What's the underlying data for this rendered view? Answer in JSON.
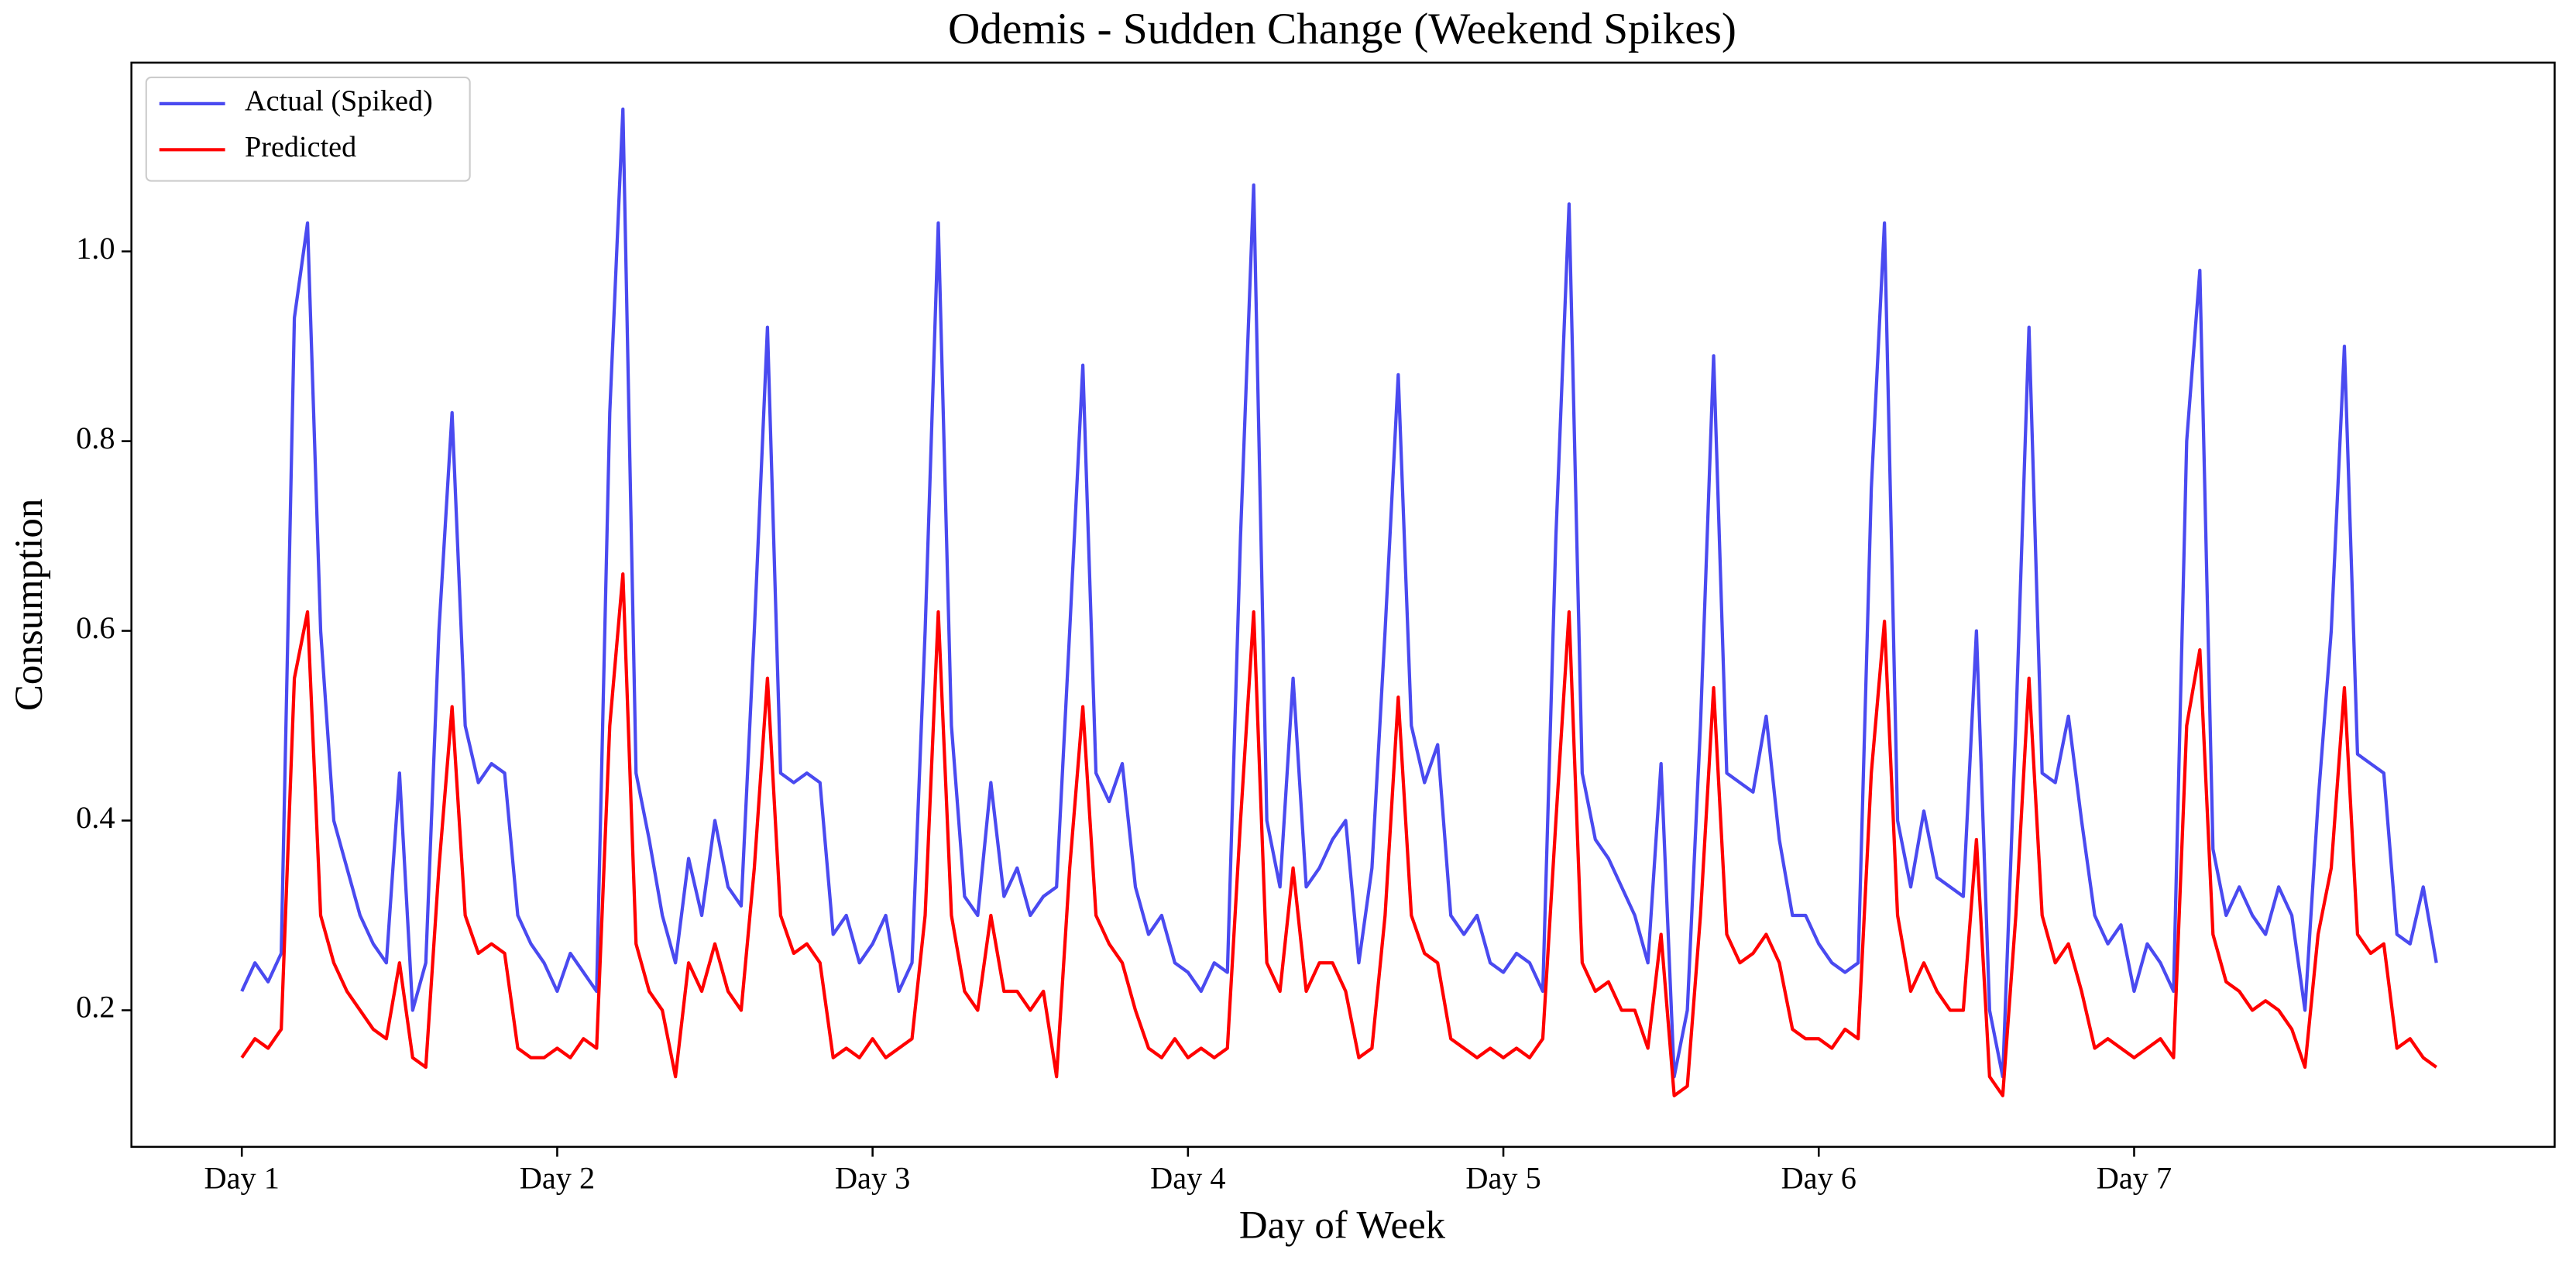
{
  "chart_data": {
    "type": "line",
    "title": "Odemis - Sudden Change (Weekend Spikes)",
    "xlabel": "Day of Week",
    "ylabel": "Consumption",
    "legend": "upper left",
    "grid": false,
    "xlim": [
      -8.4,
      176
    ],
    "ylim": [
      0.056,
      1.199
    ],
    "xticks": [
      {
        "value": 0,
        "label": "Day 1"
      },
      {
        "value": 24,
        "label": "Day 2"
      },
      {
        "value": 48,
        "label": "Day 3"
      },
      {
        "value": 72,
        "label": "Day 4"
      },
      {
        "value": 96,
        "label": "Day 5"
      },
      {
        "value": 120,
        "label": "Day 6"
      },
      {
        "value": 144,
        "label": "Day 7"
      }
    ],
    "yticks": [
      0.2,
      0.4,
      0.6,
      0.8,
      {
        "value": 1,
        "label": "1.0"
      }
    ],
    "x": [
      0,
      1,
      2,
      3,
      4,
      5,
      6,
      7,
      8,
      9,
      10,
      11,
      12,
      13,
      14,
      15,
      16,
      17,
      18,
      19,
      20,
      21,
      22,
      23,
      24,
      25,
      26,
      27,
      28,
      29,
      30,
      31,
      32,
      33,
      34,
      35,
      36,
      37,
      38,
      39,
      40,
      41,
      42,
      43,
      44,
      45,
      46,
      47,
      48,
      49,
      50,
      51,
      52,
      53,
      54,
      55,
      56,
      57,
      58,
      59,
      60,
      61,
      62,
      63,
      64,
      65,
      66,
      67,
      68,
      69,
      70,
      71,
      72,
      73,
      74,
      75,
      76,
      77,
      78,
      79,
      80,
      81,
      82,
      83,
      84,
      85,
      86,
      87,
      88,
      89,
      90,
      91,
      92,
      93,
      94,
      95,
      96,
      97,
      98,
      99,
      100,
      101,
      102,
      103,
      104,
      105,
      106,
      107,
      108,
      109,
      110,
      111,
      112,
      113,
      114,
      115,
      116,
      117,
      118,
      119,
      120,
      121,
      122,
      123,
      124,
      125,
      126,
      127,
      128,
      129,
      130,
      131,
      132,
      133,
      134,
      135,
      136,
      137,
      138,
      139,
      140,
      141,
      142,
      143,
      144,
      145,
      146,
      147,
      148,
      149,
      150,
      151,
      152,
      153,
      154,
      155,
      156,
      157,
      158,
      159,
      160,
      161,
      162,
      163,
      164,
      165,
      166,
      167
    ],
    "series": [
      {
        "name": "Actual (Spiked)",
        "color": "#4a4af0",
        "values": [
          0.22,
          0.25,
          0.23,
          0.26,
          0.93,
          1.03,
          0.6,
          0.4,
          0.35,
          0.3,
          0.27,
          0.25,
          0.45,
          0.2,
          0.25,
          0.6,
          0.83,
          0.5,
          0.44,
          0.46,
          0.45,
          0.3,
          0.27,
          0.25,
          0.22,
          0.26,
          0.24,
          0.22,
          0.83,
          1.15,
          0.45,
          0.38,
          0.3,
          0.25,
          0.36,
          0.3,
          0.4,
          0.33,
          0.31,
          0.6,
          0.92,
          0.45,
          0.44,
          0.45,
          0.44,
          0.28,
          0.3,
          0.25,
          0.27,
          0.3,
          0.22,
          0.25,
          0.6,
          1.03,
          0.5,
          0.32,
          0.3,
          0.44,
          0.32,
          0.35,
          0.3,
          0.32,
          0.33,
          0.6,
          0.88,
          0.45,
          0.42,
          0.46,
          0.33,
          0.28,
          0.3,
          0.25,
          0.24,
          0.22,
          0.25,
          0.24,
          0.7,
          1.07,
          0.4,
          0.33,
          0.55,
          0.33,
          0.35,
          0.38,
          0.4,
          0.25,
          0.35,
          0.6,
          0.87,
          0.5,
          0.44,
          0.48,
          0.3,
          0.28,
          0.3,
          0.25,
          0.24,
          0.26,
          0.25,
          0.22,
          0.7,
          1.05,
          0.45,
          0.38,
          0.36,
          0.33,
          0.3,
          0.25,
          0.46,
          0.13,
          0.2,
          0.5,
          0.89,
          0.45,
          0.44,
          0.43,
          0.51,
          0.38,
          0.3,
          0.3,
          0.27,
          0.25,
          0.24,
          0.25,
          0.75,
          1.03,
          0.4,
          0.33,
          0.41,
          0.34,
          0.33,
          0.32,
          0.6,
          0.2,
          0.13,
          0.5,
          0.92,
          0.45,
          0.44,
          0.51,
          0.4,
          0.3,
          0.27,
          0.29,
          0.22,
          0.27,
          0.25,
          0.22,
          0.8,
          0.98,
          0.37,
          0.3,
          0.33,
          0.3,
          0.28,
          0.33,
          0.3,
          0.2,
          0.42,
          0.6,
          0.9,
          0.47,
          0.46,
          0.45,
          0.28,
          0.27,
          0.33,
          0.25
        ]
      },
      {
        "name": "Predicted",
        "color": "#ff0000",
        "values": [
          0.15,
          0.17,
          0.16,
          0.18,
          0.55,
          0.62,
          0.3,
          0.25,
          0.22,
          0.2,
          0.18,
          0.17,
          0.25,
          0.15,
          0.14,
          0.35,
          0.52,
          0.3,
          0.26,
          0.27,
          0.26,
          0.16,
          0.15,
          0.15,
          0.16,
          0.15,
          0.17,
          0.16,
          0.5,
          0.66,
          0.27,
          0.22,
          0.2,
          0.13,
          0.25,
          0.22,
          0.27,
          0.22,
          0.2,
          0.35,
          0.55,
          0.3,
          0.26,
          0.27,
          0.25,
          0.15,
          0.16,
          0.15,
          0.17,
          0.15,
          0.16,
          0.17,
          0.3,
          0.62,
          0.3,
          0.22,
          0.2,
          0.3,
          0.22,
          0.22,
          0.2,
          0.22,
          0.13,
          0.35,
          0.52,
          0.3,
          0.27,
          0.25,
          0.2,
          0.16,
          0.15,
          0.17,
          0.15,
          0.16,
          0.15,
          0.16,
          0.4,
          0.62,
          0.25,
          0.22,
          0.35,
          0.22,
          0.25,
          0.25,
          0.22,
          0.15,
          0.16,
          0.3,
          0.53,
          0.3,
          0.26,
          0.25,
          0.17,
          0.16,
          0.15,
          0.16,
          0.15,
          0.16,
          0.15,
          0.17,
          0.4,
          0.62,
          0.25,
          0.22,
          0.23,
          0.2,
          0.2,
          0.16,
          0.28,
          0.11,
          0.12,
          0.3,
          0.54,
          0.28,
          0.25,
          0.26,
          0.28,
          0.25,
          0.18,
          0.17,
          0.17,
          0.16,
          0.18,
          0.17,
          0.45,
          0.61,
          0.3,
          0.22,
          0.25,
          0.22,
          0.2,
          0.2,
          0.38,
          0.13,
          0.11,
          0.3,
          0.55,
          0.3,
          0.25,
          0.27,
          0.22,
          0.16,
          0.17,
          0.16,
          0.15,
          0.16,
          0.17,
          0.15,
          0.5,
          0.58,
          0.28,
          0.23,
          0.22,
          0.2,
          0.21,
          0.2,
          0.18,
          0.14,
          0.28,
          0.35,
          0.54,
          0.28,
          0.26,
          0.27,
          0.16,
          0.17,
          0.15,
          0.14
        ]
      }
    ]
  }
}
